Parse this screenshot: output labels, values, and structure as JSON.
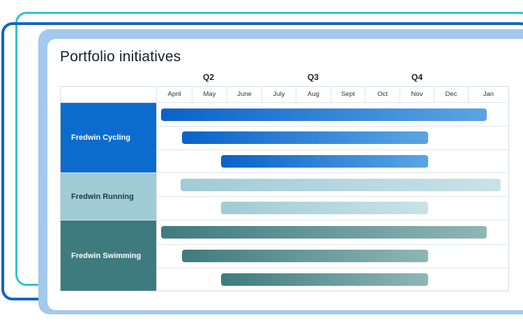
{
  "title": "Portfolio initiatives",
  "quarters": [
    "Q2",
    "Q3",
    "Q4"
  ],
  "months": [
    "April",
    "May",
    "June",
    "July",
    "Aug",
    "Sept",
    "Oct",
    "Nov",
    "Dec",
    "Jan"
  ],
  "groups": [
    {
      "label": "Fredwin Cycling",
      "bg": "#0c6ccd",
      "text": "#ffffff"
    },
    {
      "label": "Fredwin Running",
      "bg": "#a1cbd5",
      "text": "#1c3a45"
    },
    {
      "label": "Fredwin Swimming",
      "bg": "#3e7b7e",
      "text": "#ffffff"
    }
  ],
  "colors": {
    "frame_teal": "#2ec4d0",
    "frame_blue": "#1166c4",
    "panel": "#a3c9ec",
    "cycling_bar_start": "#0a62c9",
    "cycling_bar_end": "#5aa5e4",
    "running_bar_start": "#a1cbd5",
    "running_bar_end": "#c9e2e8",
    "swimming_bar_start": "#3f7b7e",
    "swimming_bar_end": "#90b6b6"
  }
}
